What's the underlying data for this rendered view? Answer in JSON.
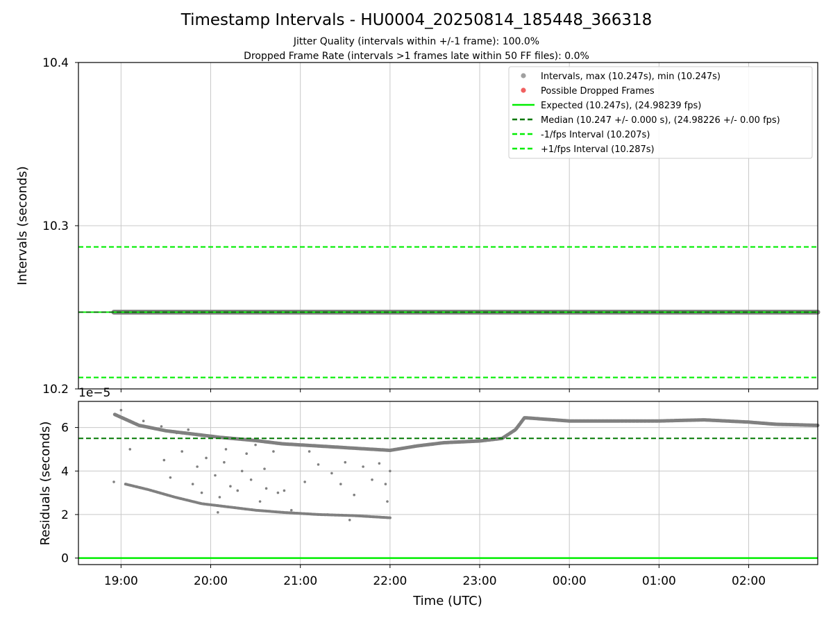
{
  "title": "Timestamp Intervals - HU0004_20250814_185448_366318",
  "subtitle_1": "Jitter Quality (intervals within +/-1 frame): 100.0%",
  "subtitle_2": "Dropped Frame Rate (intervals >1 frames late within 50 FF files): 0.0%",
  "colors": {
    "points": "#808080",
    "dropped": "#f06060",
    "expected": "#00ee00",
    "median": "#007700",
    "fps_bounds": "#00ee00",
    "grid": "#c8c8c8"
  },
  "chart_data": [
    {
      "type": "scatter",
      "ylabel": "Intervals (seconds)",
      "ylim": [
        10.2,
        10.4
      ],
      "yticks": [
        "10.2",
        "10.3",
        "10.4"
      ],
      "xlim_hours": [
        18.525,
        26.77
      ],
      "grid": true,
      "legend_position": "top-right",
      "legend": [
        "Intervals, max (10.247s), min (10.247s)",
        "Possible Dropped Frames",
        "Expected (10.247s), (24.98239 fps)",
        "Median (10.247 +/- 0.000 s), (24.98226 +/- 0.00 fps)",
        "-1/fps Interval (10.207s)",
        "+1/fps Interval (10.287s)"
      ],
      "series": [
        {
          "name": "Intervals, max (10.247s), min (10.247s)",
          "style": "points",
          "x_range_hours": [
            18.92,
            26.77
          ],
          "y": 10.247
        },
        {
          "name": "Expected (10.247s), (24.98239 fps)",
          "style": "solid",
          "y": 10.247
        },
        {
          "name": "Median (10.247 +/- 0.000 s), (24.98226 +/- 0.00 fps)",
          "style": "dashed",
          "y": 10.247
        },
        {
          "name": "-1/fps Interval (10.207s)",
          "style": "dashed",
          "y": 10.207
        },
        {
          "name": "+1/fps Interval (10.287s)",
          "style": "dashed",
          "y": 10.287
        }
      ]
    },
    {
      "type": "scatter",
      "ylabel": "Residuals (seconds)",
      "xlabel": "Time (UTC)",
      "y_offset_label": "1e−5",
      "ylim": [
        -0.3,
        7.2
      ],
      "yticks": [
        "0",
        "2",
        "4",
        "6"
      ],
      "xticks": [
        "19:00",
        "20:00",
        "21:00",
        "22:00",
        "23:00",
        "00:00",
        "01:00",
        "02:00"
      ],
      "xlim_hours": [
        18.525,
        26.77
      ],
      "grid": true,
      "reference_lines": [
        {
          "name": "Median",
          "y": 5.5,
          "style": "dashed"
        },
        {
          "name": "Expected",
          "y": 0,
          "style": "solid"
        }
      ],
      "main_trend": [
        [
          18.93,
          6.6
        ],
        [
          19.2,
          6.1
        ],
        [
          19.5,
          5.85
        ],
        [
          19.8,
          5.7
        ],
        [
          20.1,
          5.55
        ],
        [
          20.5,
          5.4
        ],
        [
          20.8,
          5.25
        ],
        [
          21.2,
          5.15
        ],
        [
          21.6,
          5.05
        ],
        [
          22.0,
          4.95
        ],
        [
          22.3,
          5.15
        ],
        [
          22.6,
          5.3
        ],
        [
          23.0,
          5.38
        ],
        [
          23.25,
          5.5
        ],
        [
          23.4,
          5.9
        ],
        [
          23.5,
          6.45
        ],
        [
          24.0,
          6.3
        ],
        [
          24.5,
          6.3
        ],
        [
          25.0,
          6.3
        ],
        [
          25.5,
          6.35
        ],
        [
          26.0,
          6.25
        ],
        [
          26.3,
          6.15
        ],
        [
          26.77,
          6.1
        ]
      ],
      "lower_trend": [
        [
          19.05,
          3.4
        ],
        [
          19.3,
          3.15
        ],
        [
          19.6,
          2.8
        ],
        [
          19.9,
          2.5
        ],
        [
          20.2,
          2.35
        ],
        [
          20.5,
          2.2
        ],
        [
          20.8,
          2.1
        ],
        [
          21.2,
          2.0
        ],
        [
          21.6,
          1.95
        ],
        [
          22.0,
          1.85
        ]
      ],
      "scatter_points": [
        [
          18.92,
          3.5
        ],
        [
          19.0,
          6.8
        ],
        [
          19.1,
          5.0
        ],
        [
          19.25,
          6.3
        ],
        [
          19.45,
          6.05
        ],
        [
          19.48,
          4.5
        ],
        [
          19.55,
          3.7
        ],
        [
          19.62,
          5.75
        ],
        [
          19.68,
          4.9
        ],
        [
          19.75,
          5.9
        ],
        [
          19.8,
          3.4
        ],
        [
          19.85,
          4.2
        ],
        [
          19.9,
          3.0
        ],
        [
          19.95,
          4.6
        ],
        [
          20.0,
          5.6
        ],
        [
          20.05,
          3.8
        ],
        [
          20.1,
          2.8
        ],
        [
          20.15,
          4.4
        ],
        [
          20.17,
          5.0
        ],
        [
          20.22,
          3.3
        ],
        [
          20.3,
          3.1
        ],
        [
          20.35,
          4.0
        ],
        [
          20.4,
          4.8
        ],
        [
          20.45,
          3.6
        ],
        [
          20.5,
          5.2
        ],
        [
          20.55,
          2.6
        ],
        [
          20.6,
          4.1
        ],
        [
          20.62,
          3.2
        ],
        [
          20.7,
          4.9
        ],
        [
          20.75,
          3.0
        ],
        [
          20.82,
          3.1
        ],
        [
          20.9,
          2.2
        ],
        [
          21.05,
          3.5
        ],
        [
          21.1,
          4.9
        ],
        [
          21.2,
          4.3
        ],
        [
          21.3,
          2.0
        ],
        [
          21.35,
          3.9
        ],
        [
          21.45,
          3.4
        ],
        [
          21.5,
          4.4
        ],
        [
          21.6,
          2.9
        ],
        [
          21.7,
          4.2
        ],
        [
          21.8,
          3.6
        ],
        [
          21.88,
          4.35
        ],
        [
          21.95,
          3.4
        ],
        [
          22.0,
          4.0
        ],
        [
          21.97,
          2.6
        ],
        [
          20.08,
          2.1
        ],
        [
          21.55,
          1.75
        ]
      ]
    }
  ]
}
